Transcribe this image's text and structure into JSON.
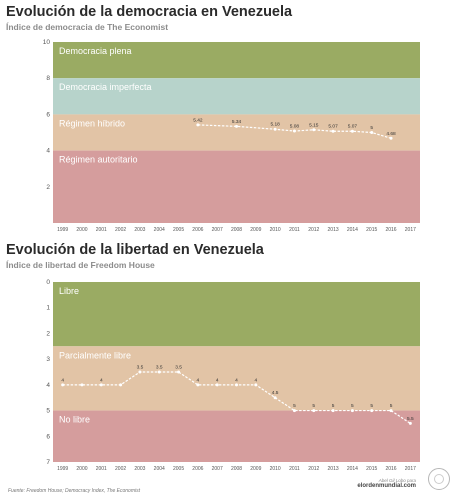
{
  "chart_data": [
    {
      "type": "line",
      "title": "Evolución de la democracia en Venezuela",
      "subtitle": "Índice de democracia de The Economist",
      "xlabel": "",
      "ylabel": "",
      "ylim": [
        0,
        10
      ],
      "y_ticks": [
        "2",
        "4",
        "6",
        "8",
        "10"
      ],
      "x_ticks": [
        "1999",
        "2000",
        "2001",
        "2002",
        "2003",
        "2004",
        "2005",
        "2006",
        "2007",
        "2008",
        "2009",
        "2010",
        "2011",
        "2012",
        "2013",
        "2014",
        "2015",
        "2016",
        "2017"
      ],
      "bands": [
        {
          "label": "Democracia plena",
          "from": 8,
          "to": 10,
          "color": "#9aab63"
        },
        {
          "label": "Democracia imperfecta",
          "from": 6,
          "to": 8,
          "color": "#b7d3cb"
        },
        {
          "label": "Régimen híbrido",
          "from": 4,
          "to": 6,
          "color": "#e2c4a6"
        },
        {
          "label": "Régimen autoritario",
          "from": 0,
          "to": 4,
          "color": "#d59d9d"
        }
      ],
      "series": [
        {
          "x": [
            "2006",
            "2008",
            "2010",
            "2011",
            "2012",
            "2013",
            "2014",
            "2015",
            "2016"
          ],
          "values": [
            5.42,
            5.34,
            5.18,
            5.08,
            5.15,
            5.07,
            5.07,
            5.0,
            4.68
          ],
          "labels": [
            "5.42",
            "5.34",
            "5.18",
            "5.08",
            "5.15",
            "5.07",
            "5.07",
            "5",
            "4.68"
          ]
        }
      ],
      "grid": false
    },
    {
      "type": "line",
      "title": "Evolución de la libertad en Venezuela",
      "subtitle": "Índice de libertad de Freedom House",
      "xlabel": "",
      "ylabel": "",
      "ylim": [
        0,
        7
      ],
      "y_inverted": true,
      "y_ticks": [
        "0",
        "1",
        "2",
        "3",
        "4",
        "5",
        "6",
        "7"
      ],
      "x_ticks": [
        "1999",
        "2000",
        "2001",
        "2002",
        "2003",
        "2004",
        "2005",
        "2006",
        "2007",
        "2008",
        "2009",
        "2010",
        "2011",
        "2012",
        "2013",
        "2014",
        "2015",
        "2016",
        "2017"
      ],
      "bands": [
        {
          "label": "Libre",
          "from": 0,
          "to": 2.5,
          "color": "#9aab63"
        },
        {
          "label": "Parcialmente libre",
          "from": 2.5,
          "to": 5,
          "color": "#e2c4a6"
        },
        {
          "label": "No libre",
          "from": 5,
          "to": 7,
          "color": "#d59d9d"
        }
      ],
      "series": [
        {
          "x": [
            "1999",
            "2000",
            "2001",
            "2002",
            "2003",
            "2004",
            "2005",
            "2006",
            "2007",
            "2008",
            "2009",
            "2010",
            "2011",
            "2012",
            "2013",
            "2014",
            "2015",
            "2016",
            "2017"
          ],
          "values": [
            4,
            4,
            4,
            4,
            3.5,
            3.5,
            3.5,
            4,
            4,
            4,
            4,
            4.5,
            5,
            5,
            5,
            5,
            5,
            5,
            5.5
          ],
          "labels": [
            "4",
            "",
            "4",
            "",
            "3.5",
            "3.5",
            "3.5",
            "4",
            "4",
            "4",
            "4",
            "4.5",
            "5",
            "5",
            "5",
            "5",
            "5",
            "5",
            "5.5"
          ]
        }
      ],
      "grid": false
    }
  ],
  "footer": {
    "source": "Fuente: Freedom House; Democracy Index, The Economist",
    "brand_line1": "Abel Gil Lobo para",
    "brand_line2": "elordenmundial.com"
  }
}
